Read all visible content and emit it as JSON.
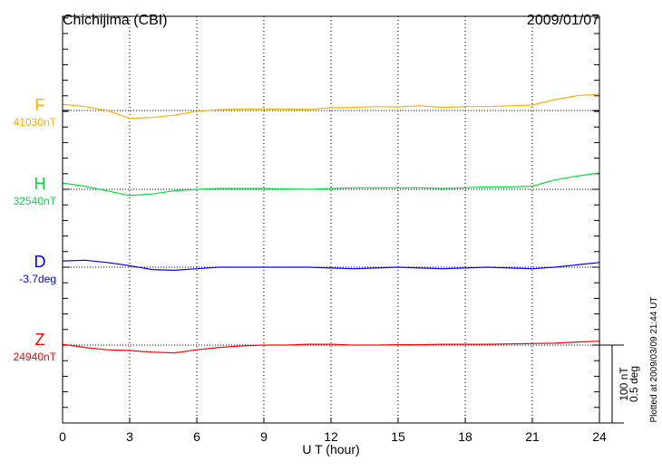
{
  "chart_data": {
    "type": "line",
    "title": "Chichijima (CBI)",
    "date": "2009/01/07",
    "xlabel": "U T (hour)",
    "xlim": [
      0,
      24
    ],
    "xticks": [
      "0",
      "3",
      "6",
      "9",
      "12",
      "15",
      "18",
      "21",
      "24"
    ],
    "grid": true,
    "scale_bar": {
      "nT": "100 nT",
      "deg": "0.5 deg"
    },
    "footer": "Plotted at 2009/03/09 21:44 UT",
    "x": [
      0,
      1,
      2,
      3,
      4,
      5,
      6,
      7,
      8,
      9,
      10,
      11,
      12,
      13,
      14,
      15,
      16,
      17,
      18,
      19,
      20,
      21,
      22,
      23,
      24
    ],
    "series": [
      {
        "name": "F",
        "baseline_label": "41030nT",
        "unit": "nT",
        "color": "#ffb000",
        "values": [
          8,
          5,
          0,
          -10,
          -9,
          -6,
          -1,
          1,
          2,
          2,
          2,
          1.5,
          3.5,
          4,
          5,
          4.5,
          6,
          4,
          5,
          5,
          6,
          7,
          14,
          19,
          21
        ]
      },
      {
        "name": "H",
        "baseline_label": "32540nT",
        "unit": "nT",
        "color": "#00e040",
        "values": [
          8,
          4,
          -2,
          -8,
          -6,
          -2,
          0,
          1,
          1,
          1,
          0.5,
          0,
          1,
          2,
          2,
          2,
          2,
          1,
          2,
          3,
          3,
          4,
          12,
          17,
          21
        ]
      },
      {
        "name": "D",
        "baseline_label": "-3.7deg",
        "unit": "deg",
        "color": "#0000ff",
        "values": [
          0.04,
          0.045,
          0.03,
          0.01,
          -0.015,
          -0.02,
          -0.01,
          0,
          0,
          0,
          0,
          0,
          -0.005,
          -0.01,
          -0.005,
          0,
          -0.005,
          -0.01,
          -0.005,
          0,
          -0.005,
          -0.01,
          0,
          0.015,
          0.03
        ]
      },
      {
        "name": "Z",
        "baseline_label": "24940nT",
        "unit": "nT",
        "color": "#ff0000",
        "values": [
          1,
          -3,
          -6,
          -7,
          -9,
          -10,
          -6,
          -3,
          -1,
          0,
          0,
          1,
          1,
          0,
          0,
          0.5,
          0.5,
          1,
          1,
          1,
          1.5,
          2,
          2.5,
          4,
          5
        ]
      }
    ]
  }
}
